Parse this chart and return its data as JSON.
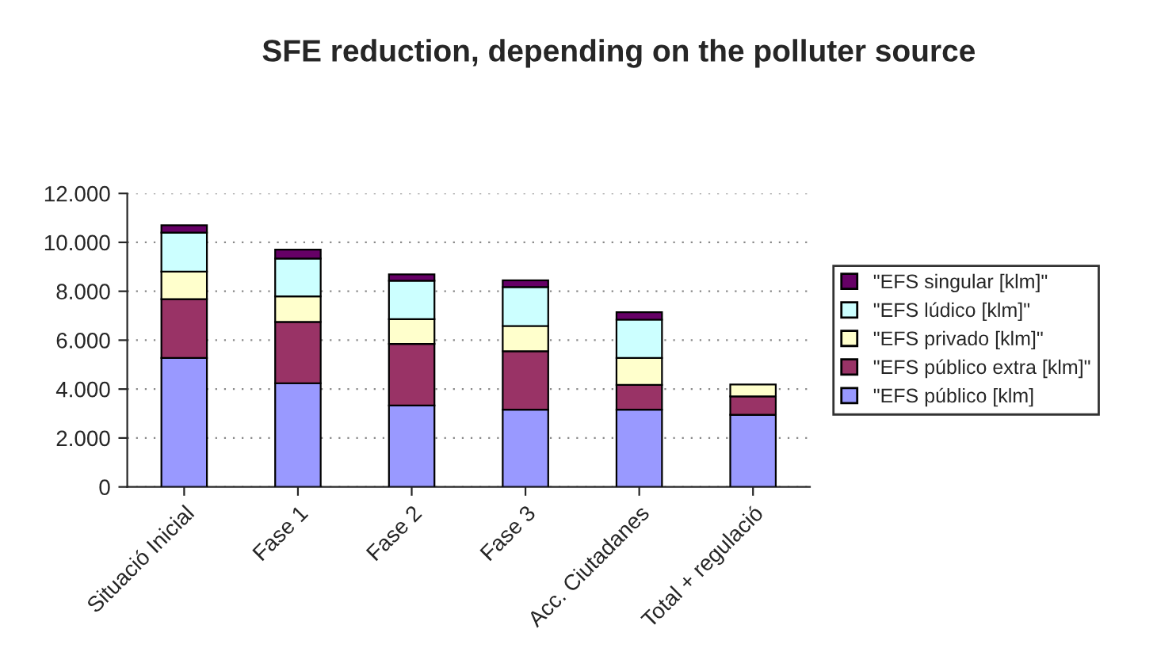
{
  "chart_data": {
    "type": "bar",
    "title": "SFE reduction, depending on the polluter source",
    "stacked": true,
    "categories": [
      "Situació Inicial",
      "Fase 1",
      "Fase 2",
      "Fase 3",
      "Acc. Ciutadanes",
      "Total + regulació"
    ],
    "series": [
      {
        "name": "\"EFS público [klm]",
        "color": "#9999ff",
        "values": [
          5270,
          4240,
          3330,
          3160,
          3160,
          2950
        ]
      },
      {
        "name": "\"EFS público extra [klm]\"",
        "color": "#993366",
        "values": [
          2410,
          2510,
          2520,
          2390,
          1010,
          750
        ]
      },
      {
        "name": "\"EFS privado [klm]\"",
        "color": "#ffffcc",
        "values": [
          1120,
          1040,
          1010,
          1030,
          1100,
          490
        ]
      },
      {
        "name": "\"EFS lúdico [klm]\"",
        "color": "#ccffff",
        "values": [
          1600,
          1550,
          1570,
          1590,
          1570,
          null
        ]
      },
      {
        "name": "\"EFS singular [klm]\"",
        "color": "#660066",
        "values": [
          300,
          360,
          260,
          280,
          300,
          null
        ]
      }
    ],
    "ylim": [
      0,
      12000
    ],
    "yticks": [
      {
        "value": 0,
        "label": "0"
      },
      {
        "value": 2000,
        "label": "2.000"
      },
      {
        "value": 4000,
        "label": "4.000"
      },
      {
        "value": 6000,
        "label": "6.000"
      },
      {
        "value": 8000,
        "label": "8.000"
      },
      {
        "value": 10000,
        "label": "10.000"
      },
      {
        "value": 12000,
        "label": "12.000"
      }
    ],
    "grid": "y",
    "legend": "right"
  }
}
